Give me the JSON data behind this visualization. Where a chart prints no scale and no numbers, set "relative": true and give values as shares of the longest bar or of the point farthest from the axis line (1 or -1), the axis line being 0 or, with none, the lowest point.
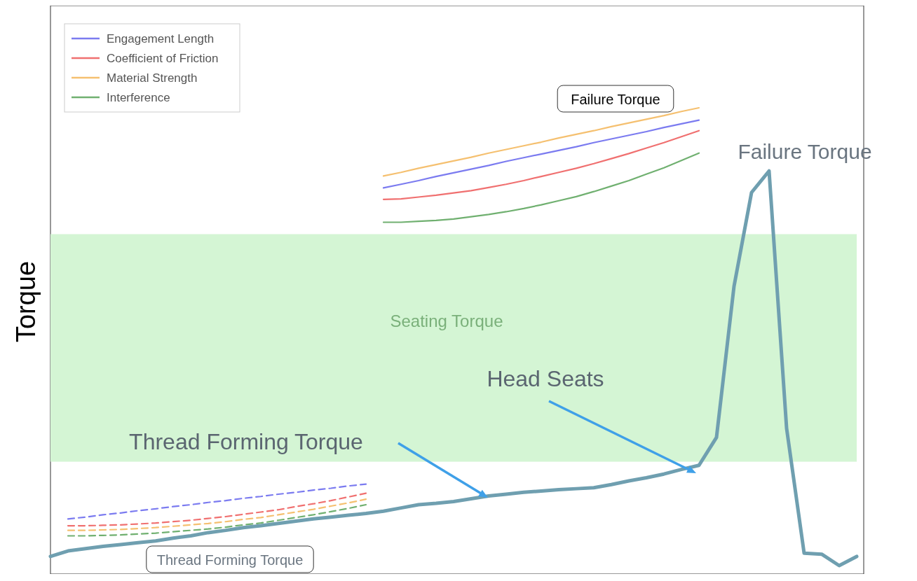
{
  "chart_data": {
    "type": "line",
    "relative": true,
    "ylabel": "Torque",
    "legend": "top left",
    "categories": [
      null,
      null,
      null,
      null,
      null,
      null,
      null,
      null,
      null,
      null,
      null,
      null,
      null,
      null,
      null,
      null,
      null,
      null,
      null,
      null,
      null,
      null,
      null,
      null,
      null,
      null,
      null,
      null,
      null,
      null,
      null,
      null,
      null,
      null,
      null,
      null,
      null,
      null,
      null,
      null,
      null,
      null,
      null,
      null,
      null,
      null,
      null
    ],
    "series": [
      {
        "name": "Engagement Length",
        "color": "#7b7bf0",
        "values": [
          null,
          null,
          null,
          null,
          null,
          null,
          null,
          null,
          null,
          null,
          null,
          null,
          null,
          null,
          null,
          null,
          null,
          null,
          null,
          0.825,
          0.833,
          0.841,
          0.85,
          0.858,
          0.866,
          0.874,
          0.883,
          0.891,
          0.899,
          0.907,
          0.915,
          0.924,
          0.932,
          0.94,
          0.948,
          0.957,
          0.965,
          0.973,
          null,
          null,
          null,
          null,
          null,
          null,
          null,
          null,
          null
        ]
      },
      {
        "name": "Coefficient of Friction",
        "color": "#f07070",
        "values": [
          null,
          null,
          null,
          null,
          null,
          null,
          null,
          null,
          null,
          null,
          null,
          null,
          null,
          null,
          null,
          null,
          null,
          null,
          null,
          0.8,
          0.801,
          0.805,
          0.809,
          0.814,
          0.819,
          0.826,
          0.833,
          0.841,
          0.85,
          0.859,
          0.868,
          0.878,
          0.889,
          0.9,
          0.912,
          0.924,
          0.937,
          0.95,
          null,
          null,
          null,
          null,
          null,
          null,
          null,
          null,
          null
        ]
      },
      {
        "name": "Material Strength",
        "color": "#f5c070",
        "values": [
          null,
          null,
          null,
          null,
          null,
          null,
          null,
          null,
          null,
          null,
          null,
          null,
          null,
          null,
          null,
          null,
          null,
          null,
          null,
          0.851,
          0.859,
          0.868,
          0.876,
          0.884,
          0.892,
          0.901,
          0.909,
          0.917,
          0.925,
          0.934,
          0.942,
          0.95,
          0.959,
          0.967,
          0.975,
          0.983,
          0.992,
          1.0,
          null,
          null,
          null,
          null,
          null,
          null,
          null,
          null,
          null
        ]
      },
      {
        "name": "Interference",
        "color": "#70b070",
        "values": [
          null,
          null,
          null,
          null,
          null,
          null,
          null,
          null,
          null,
          null,
          null,
          null,
          null,
          null,
          null,
          null,
          null,
          null,
          null,
          0.75,
          0.75,
          0.752,
          0.754,
          0.757,
          0.762,
          0.767,
          0.773,
          0.78,
          0.788,
          0.797,
          0.806,
          0.817,
          0.829,
          0.841,
          0.855,
          0.869,
          0.885,
          0.901,
          null,
          null,
          null,
          null,
          null,
          null,
          null,
          null,
          null
        ]
      },
      {
        "color": "#7b7bf0",
        "line_style": "dashed",
        "values": [
          null,
          0.102,
          0.106,
          0.111,
          0.115,
          0.12,
          0.124,
          0.129,
          0.133,
          0.138,
          0.142,
          0.147,
          0.151,
          0.156,
          0.16,
          0.165,
          0.169,
          0.174,
          0.178,
          null,
          null,
          null,
          null,
          null,
          null,
          null,
          null,
          null,
          null,
          null,
          null,
          null,
          null,
          null,
          null,
          null,
          null,
          null,
          null,
          null,
          null,
          null,
          null,
          null,
          null,
          null,
          null
        ]
      },
      {
        "color": "#f07070",
        "line_style": "dashed",
        "values": [
          null,
          0.087,
          0.087,
          0.088,
          0.089,
          0.091,
          0.093,
          0.096,
          0.099,
          0.103,
          0.107,
          0.112,
          0.117,
          0.122,
          0.129,
          0.135,
          0.142,
          0.15,
          0.158,
          null,
          null,
          null,
          null,
          null,
          null,
          null,
          null,
          null,
          null,
          null,
          null,
          null,
          null,
          null,
          null,
          null,
          null,
          null,
          null,
          null,
          null,
          null,
          null,
          null,
          null,
          null,
          null
        ]
      },
      {
        "color": "#f5c070",
        "line_style": "dashed",
        "values": [
          null,
          0.077,
          0.077,
          0.078,
          0.079,
          0.081,
          0.083,
          0.086,
          0.089,
          0.092,
          0.096,
          0.101,
          0.105,
          0.111,
          0.117,
          0.123,
          0.13,
          0.137,
          0.145,
          null,
          null,
          null,
          null,
          null,
          null,
          null,
          null,
          null,
          null,
          null,
          null,
          null,
          null,
          null,
          null,
          null,
          null,
          null,
          null,
          null,
          null,
          null,
          null,
          null,
          null,
          null,
          null
        ]
      },
      {
        "color": "#70b070",
        "line_style": "dashed",
        "values": [
          null,
          0.065,
          0.065,
          0.066,
          0.067,
          0.069,
          0.071,
          0.074,
          0.077,
          0.08,
          0.084,
          0.089,
          0.093,
          0.099,
          0.105,
          0.111,
          0.118,
          0.125,
          0.133,
          null,
          null,
          null,
          null,
          null,
          null,
          null,
          null,
          null,
          null,
          null,
          null,
          null,
          null,
          null,
          null,
          null,
          null,
          null,
          null,
          null,
          null,
          null,
          null,
          null,
          null,
          null,
          null
        ]
      },
      {
        "color": "#6f9fb0",
        "values": [
          0.02,
          0.032,
          0.037,
          0.042,
          0.046,
          0.05,
          0.054,
          0.06,
          0.065,
          0.072,
          0.077,
          0.083,
          0.087,
          0.092,
          0.097,
          0.102,
          0.106,
          0.11,
          0.114,
          0.119,
          0.126,
          0.133,
          0.136,
          0.14,
          0.146,
          0.152,
          0.156,
          0.16,
          0.163,
          0.166,
          0.168,
          0.17,
          0.177,
          0.185,
          0.192,
          0.2,
          0.21,
          0.219,
          0.28,
          0.61,
          0.815,
          0.862,
          0.3,
          0.027,
          0.025,
          0.0,
          0.02
        ]
      }
    ],
    "bands": [
      {
        "axis": "y",
        "from": 0.227,
        "to": 0.724,
        "label": "Seating Torque",
        "color": "#d4f5d4"
      }
    ],
    "annotations": [
      "Failure Torque",
      "Failure Torque",
      "Thread Forming Torque",
      "Head Seats",
      "Thread Forming Torque"
    ]
  }
}
